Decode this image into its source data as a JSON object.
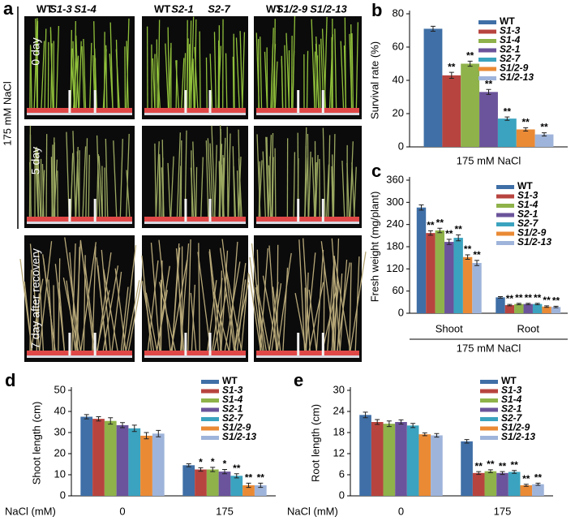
{
  "figure_a": {
    "panel_label": "a",
    "column_labels": [
      [
        "WT",
        "S1-3",
        "S1-4"
      ],
      [
        "WT",
        "S2-1",
        "S2-7"
      ],
      [
        "WT",
        "S1/2-9",
        "S1/2-13"
      ]
    ],
    "treatment": "175 mM NaCl",
    "row_labels": [
      "0 day",
      "5 day",
      "7 day after recovery"
    ]
  },
  "chart_data": [
    {
      "type": "bar",
      "panel_label": "b",
      "ylabel": "Survival rate (%)",
      "xlabel": "175 mM NaCl",
      "categories": [
        null
      ],
      "ylim": [
        0,
        80
      ],
      "yticks": [
        0,
        20,
        40,
        60,
        80
      ],
      "legend": "upper right",
      "series": [
        {
          "name": "WT",
          "color": "#3f6fa6",
          "values": [
            71
          ],
          "errors": [
            1.5
          ],
          "significance": [
            null
          ]
        },
        {
          "name": "S1-3",
          "color": "#b8443f",
          "values": [
            43
          ],
          "errors": [
            1.8
          ],
          "significance": [
            "**"
          ]
        },
        {
          "name": "S1-4",
          "color": "#8fb24a",
          "values": [
            50
          ],
          "errors": [
            1.5
          ],
          "significance": [
            "**"
          ]
        },
        {
          "name": "S2-1",
          "color": "#6b549b",
          "values": [
            33
          ],
          "errors": [
            1.5
          ],
          "significance": [
            "**"
          ]
        },
        {
          "name": "S2-7",
          "color": "#3ba3bf",
          "values": [
            17
          ],
          "errors": [
            1
          ],
          "significance": [
            "**"
          ]
        },
        {
          "name": "S1/2-9",
          "color": "#ea8a35",
          "values": [
            10.5
          ],
          "errors": [
            1
          ],
          "significance": [
            "**"
          ]
        },
        {
          "name": "S1/2-13",
          "color": "#9fb4da",
          "values": [
            7.5
          ],
          "errors": [
            1
          ],
          "significance": [
            "**"
          ]
        }
      ]
    },
    {
      "type": "bar",
      "panel_label": "c",
      "ylabel": "Fresh weight (mg/plant)",
      "xlabel": "175 mM NaCl",
      "categories": [
        "Shoot",
        "Root"
      ],
      "ylim": [
        0,
        360
      ],
      "yticks": [
        0,
        60,
        120,
        180,
        240,
        300,
        360
      ],
      "legend": "upper right",
      "series": [
        {
          "name": "WT",
          "color": "#3f6fa6",
          "values": [
            286,
            43
          ],
          "errors": [
            7,
            2
          ],
          "significance": [
            null,
            null
          ]
        },
        {
          "name": "S1-3",
          "color": "#b8443f",
          "values": [
            217,
            22
          ],
          "errors": [
            6,
            2
          ],
          "significance": [
            "**",
            "**"
          ]
        },
        {
          "name": "S1-4",
          "color": "#8fb24a",
          "values": [
            224,
            25
          ],
          "errors": [
            6,
            2
          ],
          "significance": [
            "**",
            "**"
          ]
        },
        {
          "name": "S2-1",
          "color": "#6b549b",
          "values": [
            193,
            25
          ],
          "errors": [
            7,
            2
          ],
          "significance": [
            "**",
            "**"
          ]
        },
        {
          "name": "S2-7",
          "color": "#3ba3bf",
          "values": [
            204,
            25
          ],
          "errors": [
            8,
            2
          ],
          "significance": [
            "**",
            "**"
          ]
        },
        {
          "name": "S1/2-9",
          "color": "#ea8a35",
          "values": [
            152,
            18
          ],
          "errors": [
            6,
            2
          ],
          "significance": [
            "**",
            "**"
          ]
        },
        {
          "name": "S1/2-13",
          "color": "#9fb4da",
          "values": [
            136,
            17
          ],
          "errors": [
            7,
            2
          ],
          "significance": [
            "**",
            "**"
          ]
        }
      ]
    },
    {
      "type": "bar",
      "panel_label": "d",
      "ylabel": "Shoot length (cm)",
      "xlabel": "NaCl (mM)",
      "categories": [
        "0",
        "175"
      ],
      "ylim": [
        0,
        50
      ],
      "yticks": [
        0,
        10,
        20,
        30,
        40,
        50
      ],
      "legend": "upper right",
      "series": [
        {
          "name": "WT",
          "color": "#3f6fa6",
          "values": [
            37.5,
            14.5
          ],
          "errors": [
            1,
            0.7
          ],
          "significance": [
            null,
            null
          ]
        },
        {
          "name": "S1-3",
          "color": "#b8443f",
          "values": [
            36.5,
            12.5
          ],
          "errors": [
            1,
            0.8
          ],
          "significance": [
            null,
            "*"
          ]
        },
        {
          "name": "S1-4",
          "color": "#8fb24a",
          "values": [
            35.5,
            12.5
          ],
          "errors": [
            1.5,
            1
          ],
          "significance": [
            null,
            "*"
          ]
        },
        {
          "name": "S2-1",
          "color": "#6b549b",
          "values": [
            33.5,
            11.5
          ],
          "errors": [
            1.2,
            1
          ],
          "significance": [
            null,
            "*"
          ]
        },
        {
          "name": "S2-7",
          "color": "#3ba3bf",
          "values": [
            32,
            9.5
          ],
          "errors": [
            1.5,
            1
          ],
          "significance": [
            null,
            "**"
          ]
        },
        {
          "name": "S1/2-9",
          "color": "#ea8a35",
          "values": [
            28.5,
            5
          ],
          "errors": [
            1.5,
            1
          ],
          "significance": [
            null,
            "**"
          ]
        },
        {
          "name": "S1/2-13",
          "color": "#9fb4da",
          "values": [
            29.5,
            5
          ],
          "errors": [
            1.5,
            1
          ],
          "significance": [
            null,
            "**"
          ]
        }
      ]
    },
    {
      "type": "bar",
      "panel_label": "e",
      "ylabel": "Root length (cm)",
      "xlabel": "NaCl (mM)",
      "categories": [
        "0",
        "175"
      ],
      "ylim": [
        0,
        30
      ],
      "yticks": [
        0,
        6,
        12,
        18,
        24,
        30
      ],
      "legend": "upper right",
      "series": [
        {
          "name": "WT",
          "color": "#3f6fa6",
          "values": [
            23,
            15.5
          ],
          "errors": [
            0.8,
            0.5
          ],
          "significance": [
            null,
            null
          ]
        },
        {
          "name": "S1-3",
          "color": "#b8443f",
          "values": [
            21,
            6.5
          ],
          "errors": [
            0.7,
            0.4
          ],
          "significance": [
            null,
            "**"
          ]
        },
        {
          "name": "S1-4",
          "color": "#8fb24a",
          "values": [
            20.5,
            7
          ],
          "errors": [
            0.8,
            0.4
          ],
          "significance": [
            null,
            "**"
          ]
        },
        {
          "name": "S2-1",
          "color": "#6b549b",
          "values": [
            21,
            6.5
          ],
          "errors": [
            0.6,
            0.4
          ],
          "significance": [
            null,
            "**"
          ]
        },
        {
          "name": "S2-7",
          "color": "#3ba3bf",
          "values": [
            20,
            6.8
          ],
          "errors": [
            0.6,
            0.4
          ],
          "significance": [
            null,
            "**"
          ]
        },
        {
          "name": "S1/2-9",
          "color": "#ea8a35",
          "values": [
            17.5,
            3
          ],
          "errors": [
            0.4,
            0.3
          ],
          "significance": [
            null,
            "**"
          ]
        },
        {
          "name": "S1/2-13",
          "color": "#9fb4da",
          "values": [
            17.2,
            3.3
          ],
          "errors": [
            0.5,
            0.3
          ],
          "significance": [
            null,
            "**"
          ]
        }
      ]
    }
  ]
}
